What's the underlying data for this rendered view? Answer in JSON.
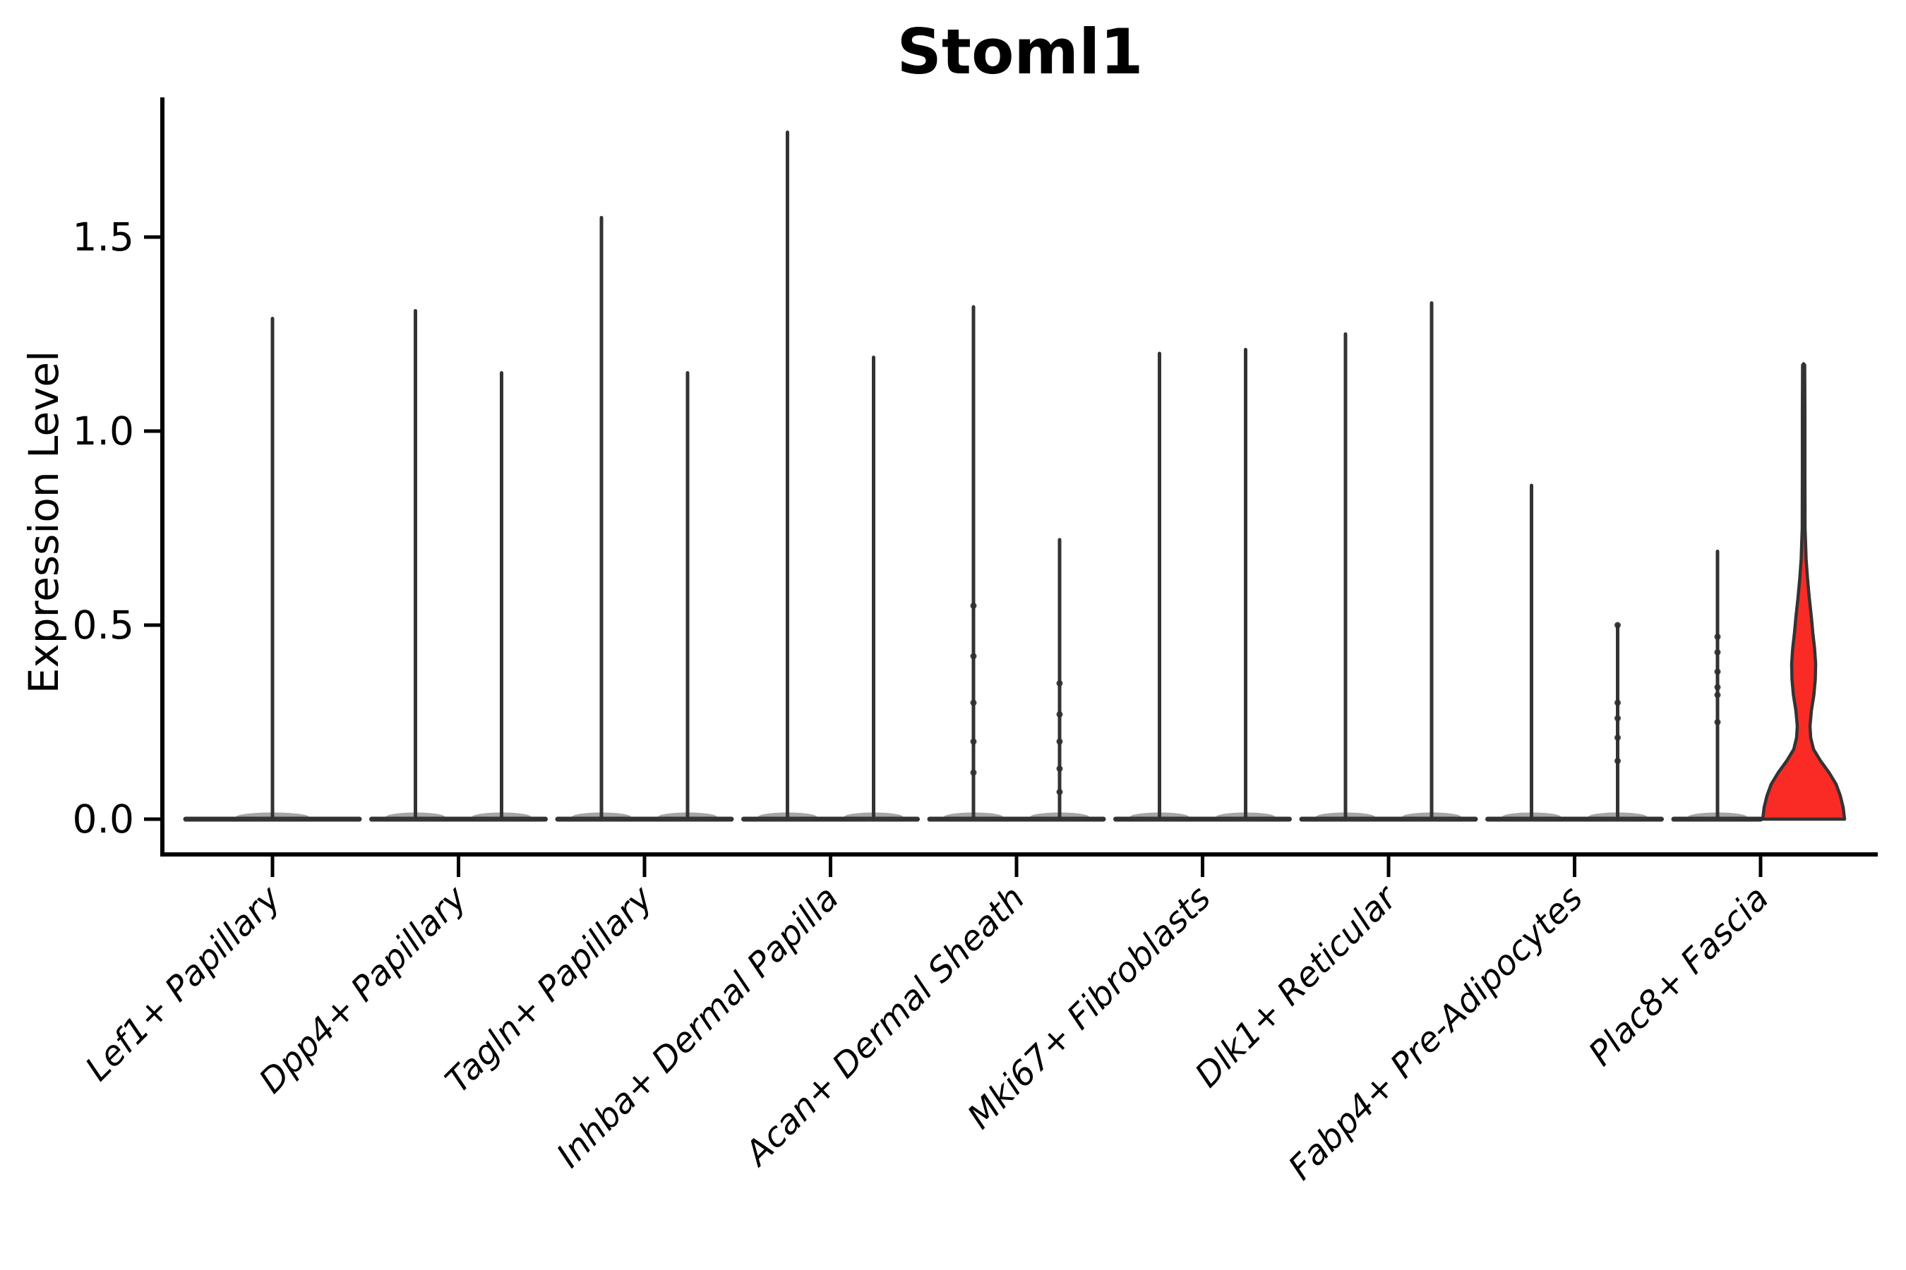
{
  "chart_data": {
    "type": "violin",
    "title": "Stoml1",
    "ylabel": "Expression Level",
    "xlabel": "",
    "ylim": [
      0,
      1.86
    ],
    "yticks": [
      "0.0",
      "0.5",
      "1.0",
      "1.5"
    ],
    "ytick_values": [
      0,
      0.5,
      1.0,
      1.5
    ],
    "grid": false,
    "legend_position": "none",
    "line_color": "#333333",
    "axis_color": "#000000",
    "highlight_color": "#fa2b25",
    "note": "Each category shows thin spike-violins (expression mostly 0 with sparse high cells); Plac8+ Fascia right violin is red with real density mass up to ~0.7 and tail to 1.17",
    "categories": [
      {
        "label": "Lef1+ Papillary",
        "violins": [
          {
            "slot": "center",
            "kind": "spike",
            "max": 1.29
          }
        ]
      },
      {
        "label": "Dpp4+ Papillary",
        "violins": [
          {
            "slot": "left",
            "kind": "spike",
            "max": 1.31
          },
          {
            "slot": "right",
            "kind": "spike",
            "max": 1.15
          }
        ]
      },
      {
        "label": "Tagln+ Papillary",
        "violins": [
          {
            "slot": "left",
            "kind": "spike",
            "max": 1.55
          },
          {
            "slot": "right",
            "kind": "spike",
            "max": 1.15
          }
        ]
      },
      {
        "label": "Inhba+ Dermal Papilla",
        "violins": [
          {
            "slot": "left",
            "kind": "spike",
            "max": 1.77
          },
          {
            "slot": "right",
            "kind": "spike",
            "max": 1.19
          }
        ]
      },
      {
        "label": "Acan+ Dermal Sheath",
        "violins": [
          {
            "slot": "left",
            "kind": "spike",
            "max": 1.32,
            "points": [
              0.55,
              0.42,
              0.3,
              0.2,
              0.12
            ]
          },
          {
            "slot": "right",
            "kind": "spike",
            "max": 0.72,
            "points": [
              0.35,
              0.27,
              0.2,
              0.13,
              0.07
            ]
          }
        ]
      },
      {
        "label": "Mki67+ Fibroblasts",
        "violins": [
          {
            "slot": "left",
            "kind": "spike",
            "max": 1.2
          },
          {
            "slot": "right",
            "kind": "spike",
            "max": 1.21
          }
        ]
      },
      {
        "label": "Dlk1+ Reticular",
        "violins": [
          {
            "slot": "left",
            "kind": "spike",
            "max": 1.25
          },
          {
            "slot": "right",
            "kind": "spike",
            "max": 1.33
          }
        ]
      },
      {
        "label": "Fabp4+ Pre-Adipocytes",
        "violins": [
          {
            "slot": "left",
            "kind": "spike",
            "max": 0.86
          },
          {
            "slot": "right",
            "kind": "spike",
            "max": 0.5,
            "points": [
              0.5,
              0.3,
              0.26,
              0.21,
              0.15
            ]
          }
        ]
      },
      {
        "label": "Plac8+ Fascia",
        "violins": [
          {
            "slot": "left",
            "kind": "spike",
            "max": 0.69,
            "points": [
              0.47,
              0.43,
              0.38,
              0.34,
              0.32,
              0.25
            ]
          },
          {
            "slot": "right",
            "kind": "density",
            "max": 1.17,
            "fill": "#fa2b25",
            "profile": [
              [
                0,
                58
              ],
              [
                0.03,
                56
              ],
              [
                0.06,
                52
              ],
              [
                0.09,
                46
              ],
              [
                0.12,
                36
              ],
              [
                0.15,
                24
              ],
              [
                0.18,
                14
              ],
              [
                0.21,
                10
              ],
              [
                0.24,
                9
              ],
              [
                0.28,
                11
              ],
              [
                0.32,
                14.5
              ],
              [
                0.36,
                16.5
              ],
              [
                0.4,
                17
              ],
              [
                0.44,
                15.5
              ],
              [
                0.48,
                13
              ],
              [
                0.52,
                11
              ],
              [
                0.57,
                8
              ],
              [
                0.62,
                5.5
              ],
              [
                0.67,
                3.5
              ],
              [
                0.75,
                2
              ],
              [
                0.9,
                1.8
              ],
              [
                1.05,
                1.8
              ],
              [
                1.17,
                1.5
              ]
            ]
          }
        ]
      }
    ]
  }
}
